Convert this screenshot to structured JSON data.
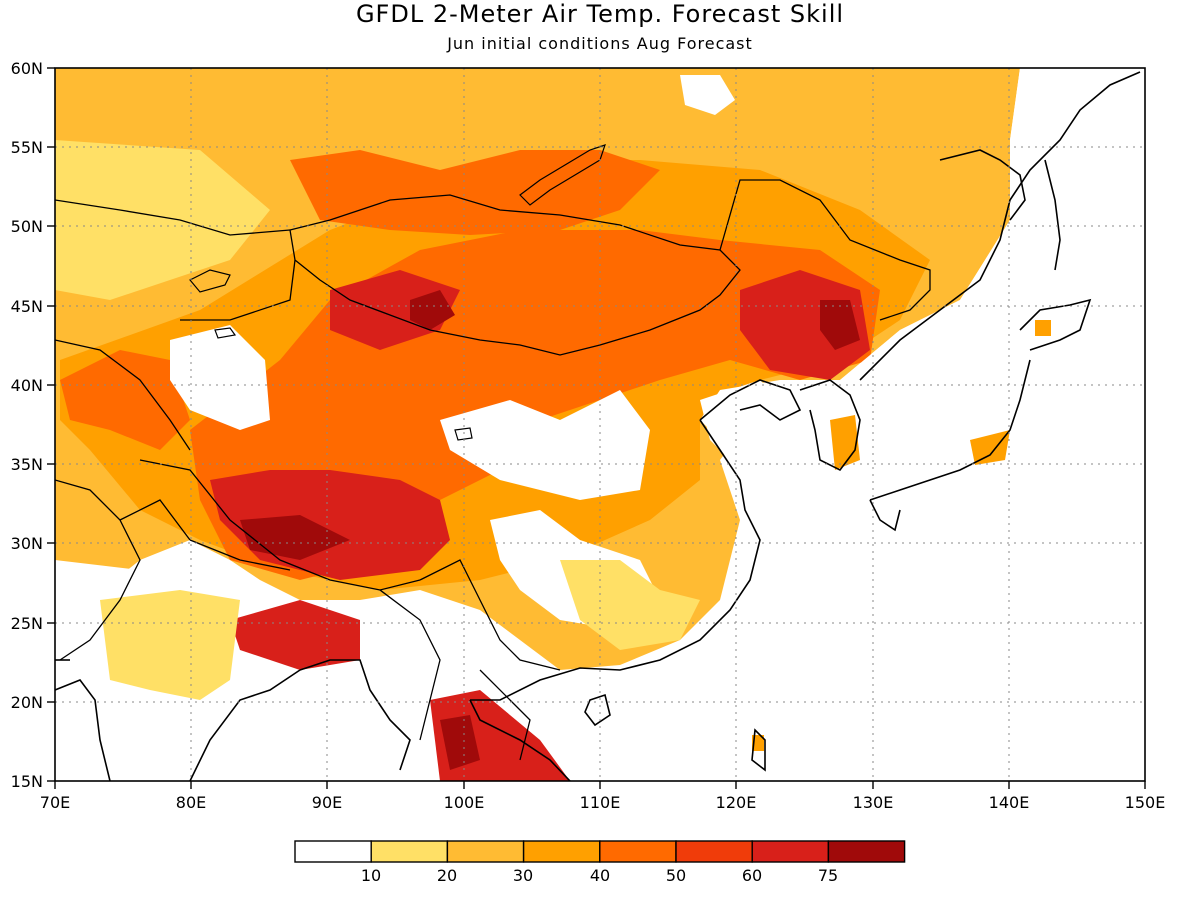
{
  "title": "GFDL 2-Meter Air Temp. Forecast Skill",
  "subtitle": "Jun initial conditions  Aug Forecast",
  "map": {
    "lon_range": [
      70,
      150
    ],
    "lat_range": [
      15,
      60
    ],
    "lon_ticks": [
      "70E",
      "80E",
      "90E",
      "100E",
      "110E",
      "120E",
      "130E",
      "140E",
      "150E"
    ],
    "lat_ticks": [
      "15N",
      "20N",
      "25N",
      "30N",
      "35N",
      "40N",
      "45N",
      "50N",
      "55N",
      "60N"
    ],
    "grid": "dotted"
  },
  "colorbar": {
    "colors": [
      "#ffffff",
      "#ffe066",
      "#ffbb33",
      "#ffa000",
      "#ff6a00",
      "#f03c0a",
      "#d8201a",
      "#a00a0a"
    ],
    "labels": [
      "10",
      "20",
      "30",
      "40",
      "50",
      "60",
      "75"
    ]
  }
}
